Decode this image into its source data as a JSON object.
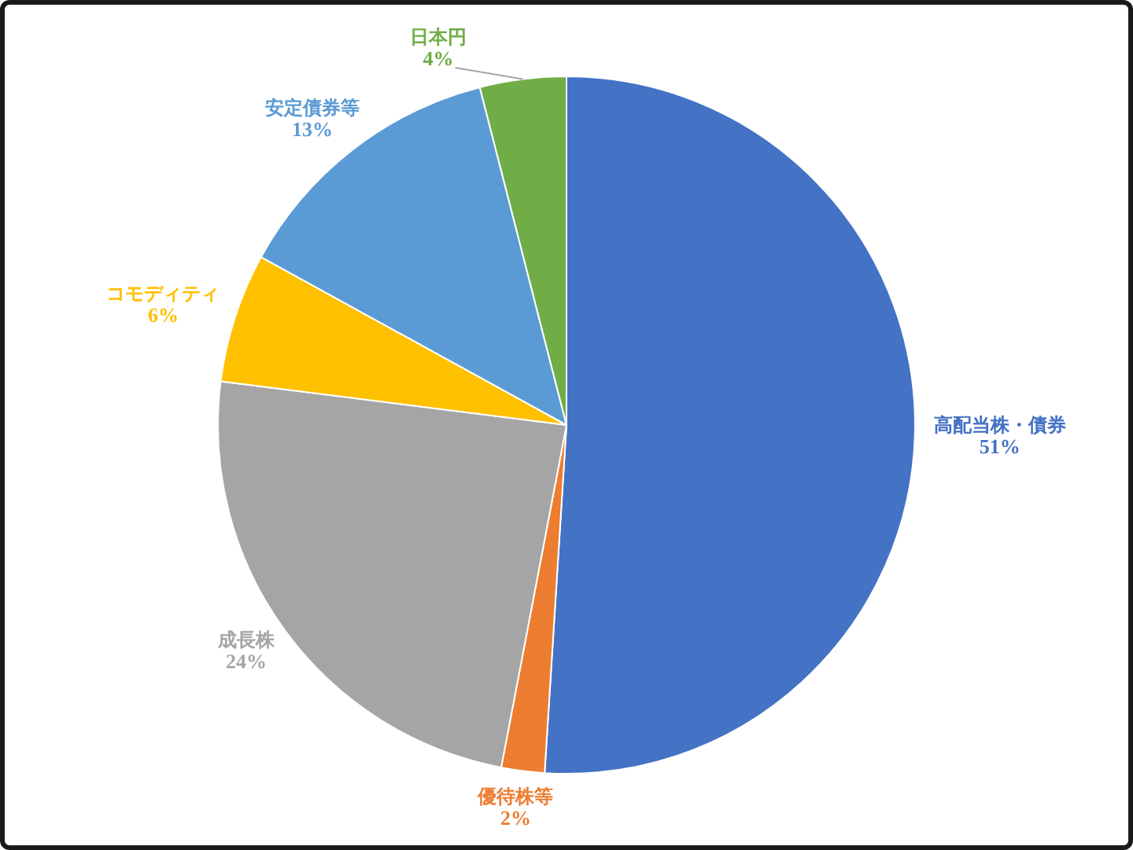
{
  "chart_data": {
    "type": "pie",
    "categories": [
      "高配当株・債券",
      "優待株等",
      "成長株",
      "コモディティ",
      "安定債券等",
      "日本円"
    ],
    "values": [
      51,
      2,
      24,
      6,
      13,
      4
    ],
    "colors": [
      "#4472c4",
      "#ed7d31",
      "#a5a5a5",
      "#ffc000",
      "#5b9bd5",
      "#70ad47"
    ],
    "value_labels": [
      "51%",
      "2%",
      "24%",
      "6%",
      "13%",
      "4%"
    ]
  }
}
